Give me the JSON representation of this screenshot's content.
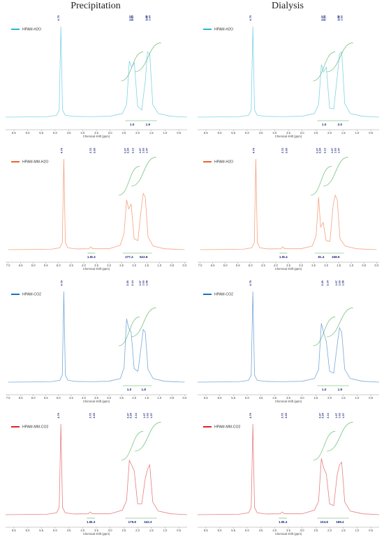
{
  "column_titles": [
    "Precipitation",
    "Dialysis"
  ],
  "chart_data": [
    {
      "type": "line",
      "xlabel": "Chemical shift (ppm)",
      "xlim": [
        6.8,
        0.2
      ],
      "xticks": [
        6.5,
        {
          "value": 6,
          "label": "6.0"
        },
        5.5,
        {
          "value": 5,
          "label": "5.0"
        },
        4.5,
        {
          "value": 4,
          "label": "4.0"
        },
        3.5,
        {
          "value": 3,
          "label": "3.0"
        },
        2.5,
        {
          "value": 2,
          "label": "2.0"
        },
        1.5,
        {
          "value": 1,
          "label": "1.0"
        },
        0.5
      ],
      "ylim": [
        0,
        100
      ],
      "x": [
        6.8,
        5.3,
        4.95,
        4.85,
        4.79,
        4.73,
        4.63,
        4.3,
        3.8,
        3.72,
        3.65,
        3.0,
        2.55,
        2.4,
        2.3,
        2.22,
        2.12,
        2.0,
        1.85,
        1.72,
        1.64,
        1.56,
        1.45,
        1.25,
        0.8,
        0.2
      ],
      "series": [
        {
          "name": "HPAM-H2O",
          "color": "#29b6d8",
          "values": [
            0,
            0.5,
            2,
            8,
            100,
            8,
            2,
            0.8,
            0.6,
            0.6,
            0.6,
            1,
            4,
            14,
            62,
            55,
            60,
            12,
            8,
            40,
            72,
            70,
            14,
            4,
            1,
            0
          ]
        }
      ],
      "peak_labels": [
        4.79,
        2.27,
        2.25,
        2.14,
        1.67,
        1.64,
        1.58
      ],
      "integrals": [
        {
          "from": 2.45,
          "to": 1.95,
          "value": 1,
          "label": "1.0"
        },
        {
          "from": 1.95,
          "to": 1.3,
          "value": 1.9
        }
      ]
    },
    {
      "type": "line",
      "xlabel": "Chemical shift (ppm)",
      "xlim": [
        6.8,
        0.2
      ],
      "xticks": [
        6.5,
        {
          "value": 6,
          "label": "6.0"
        },
        5.5,
        {
          "value": 5,
          "label": "5.0"
        },
        4.5,
        {
          "value": 4,
          "label": "4.0"
        },
        3.5,
        {
          "value": 3,
          "label": "3.0"
        },
        2.5,
        {
          "value": 2,
          "label": "2.0"
        },
        1.5,
        {
          "value": 1,
          "label": "1.0"
        },
        0.5
      ],
      "ylim": [
        0,
        100
      ],
      "x": [
        6.8,
        5.3,
        4.95,
        4.85,
        4.79,
        4.73,
        4.63,
        4.3,
        3.8,
        3.72,
        3.65,
        3.0,
        2.55,
        2.4,
        2.3,
        2.22,
        2.12,
        2.0,
        1.85,
        1.72,
        1.64,
        1.56,
        1.45,
        1.25,
        0.8,
        0.2
      ],
      "series": [
        {
          "name": "HPAM-H2O",
          "color": "#29b6d8",
          "values": [
            0,
            0.5,
            2,
            8,
            100,
            8,
            2,
            0.8,
            0.6,
            0.6,
            0.6,
            1,
            4,
            14,
            58,
            50,
            55,
            10,
            9,
            45,
            70,
            72,
            15,
            4,
            1,
            0
          ]
        }
      ],
      "peak_labels": [
        4.79,
        2.27,
        2.24,
        2.13,
        1.67,
        1.63,
        1.58
      ],
      "integrals": [
        {
          "from": 2.45,
          "to": 1.95,
          "value": 1,
          "label": "1.0"
        },
        {
          "from": 1.95,
          "to": 1.3,
          "value": 2,
          "label": "2.0"
        }
      ]
    },
    {
      "type": "line",
      "xlabel": "Chemical shift (ppm)",
      "xlim": [
        7.1,
        -0.1
      ],
      "xticks": [
        {
          "value": 7,
          "label": "7.0"
        },
        6.5,
        {
          "value": 6,
          "label": "6.0"
        },
        5.5,
        {
          "value": 5,
          "label": "5.0"
        },
        4.5,
        {
          "value": 4,
          "label": "4.0"
        },
        3.5,
        {
          "value": 3,
          "label": "3.0"
        },
        2.5,
        {
          "value": 2,
          "label": "2.0"
        },
        1.5,
        {
          "value": 1,
          "label": "1.0"
        },
        0.5,
        {
          "value": 0,
          "label": "0.0"
        }
      ],
      "ylim": [
        0,
        100
      ],
      "x": [
        7.0,
        5.3,
        4.95,
        4.85,
        4.79,
        4.73,
        4.63,
        4.3,
        3.8,
        3.72,
        3.65,
        3.0,
        2.55,
        2.4,
        2.3,
        2.22,
        2.12,
        2.0,
        1.85,
        1.72,
        1.64,
        1.56,
        1.45,
        1.25,
        0.8,
        0.0
      ],
      "series": [
        {
          "name": "HPAM-MM-H2O",
          "color": "#f0642a",
          "values": [
            0,
            0.5,
            2,
            8,
            100,
            8,
            2,
            0.8,
            1,
            3,
            1,
            1,
            5,
            18,
            55,
            45,
            50,
            12,
            10,
            45,
            62,
            58,
            14,
            4,
            1,
            0
          ]
        }
      ],
      "peak_labels": [
        4.79,
        3.72,
        3.65,
        2.27,
        2.24,
        2.13,
        1.67,
        1.63,
        1.57
      ],
      "integrals": [
        {
          "from": 3.85,
          "to": 3.7,
          "value": 1,
          "label": "1.0"
        },
        {
          "from": 3.7,
          "to": 3.55,
          "value": 0.3
        },
        {
          "from": 2.45,
          "to": 1.95,
          "value": 277.4
        },
        {
          "from": 1.95,
          "to": 1.3,
          "value": 522.8
        }
      ]
    },
    {
      "type": "line",
      "xlabel": "Chemical shift (ppm)",
      "xlim": [
        7.1,
        -0.1
      ],
      "xticks": [
        {
          "value": 7,
          "label": "7.0"
        },
        6.5,
        {
          "value": 6,
          "label": "6.0"
        },
        5.5,
        {
          "value": 5,
          "label": "5.0"
        },
        4.5,
        {
          "value": 4,
          "label": "4.0"
        },
        3.5,
        {
          "value": 3,
          "label": "3.0"
        },
        2.5,
        {
          "value": 2,
          "label": "2.0"
        },
        1.5,
        {
          "value": 1,
          "label": "1.0"
        },
        0.5,
        {
          "value": 0,
          "label": "0.0"
        }
      ],
      "ylim": [
        0,
        100
      ],
      "x": [
        7.0,
        5.3,
        4.95,
        4.85,
        4.79,
        4.73,
        4.63,
        4.3,
        3.8,
        3.72,
        3.65,
        3.0,
        2.55,
        2.4,
        2.3,
        2.22,
        2.12,
        2.0,
        1.85,
        1.72,
        1.64,
        1.56,
        1.45,
        1.25,
        0.8,
        0.0
      ],
      "series": [
        {
          "name": "HPAM-H2O",
          "color": "#f0642a",
          "values": [
            0,
            0.5,
            2,
            8,
            100,
            8,
            2,
            0.8,
            1,
            3,
            1,
            1,
            4,
            15,
            58,
            25,
            30,
            10,
            9,
            50,
            60,
            55,
            12,
            4,
            1,
            0
          ]
        }
      ],
      "peak_labels": [
        4.79,
        3.72,
        3.65,
        2.27,
        2.24,
        2.13,
        1.67,
        1.63,
        1.57
      ],
      "integrals": [
        {
          "from": 3.85,
          "to": 3.7,
          "value": 1,
          "label": "1.0"
        },
        {
          "from": 3.7,
          "to": 3.55,
          "value": 0.4
        },
        {
          "from": 2.45,
          "to": 1.95,
          "value": 81.4
        },
        {
          "from": 1.95,
          "to": 1.3,
          "value": 158.9
        }
      ]
    },
    {
      "type": "line",
      "xlabel": "Chemical shift (ppm)",
      "xlim": [
        7.1,
        -0.1
      ],
      "xticks": [
        {
          "value": 7,
          "label": "7.0"
        },
        6.5,
        {
          "value": 6,
          "label": "6.0"
        },
        5.5,
        {
          "value": 5,
          "label": "5.0"
        },
        4.5,
        {
          "value": 4,
          "label": "4.0"
        },
        3.5,
        {
          "value": 3,
          "label": "3.0"
        },
        2.5,
        {
          "value": 2,
          "label": "2.0"
        },
        1.5,
        {
          "value": 1,
          "label": "1.0"
        },
        0.5,
        {
          "value": 0,
          "label": "0.0"
        }
      ],
      "ylim": [
        0,
        100
      ],
      "x": [
        7.0,
        5.3,
        4.95,
        4.85,
        4.79,
        4.73,
        4.63,
        4.3,
        3.8,
        3.72,
        3.65,
        3.0,
        2.55,
        2.4,
        2.3,
        2.22,
        2.12,
        2.0,
        1.85,
        1.72,
        1.64,
        1.56,
        1.45,
        1.25,
        0.8,
        0.0
      ],
      "series": [
        {
          "name": "HPAM-CO2",
          "color": "#1a6fc4",
          "values": [
            0,
            0.5,
            2,
            8,
            100,
            8,
            2,
            0.8,
            0.6,
            0.6,
            0.6,
            1,
            4,
            16,
            70,
            60,
            55,
            15,
            12,
            40,
            58,
            55,
            14,
            4,
            1,
            0
          ]
        }
      ],
      "peak_labels": [
        4.79,
        2.26,
        2.14,
        1.67,
        1.63,
        1.58
      ],
      "integrals": [
        {
          "from": 2.45,
          "to": 1.95,
          "value": 1,
          "label": "1.0"
        },
        {
          "from": 1.95,
          "to": 1.3,
          "value": 1.8
        }
      ]
    },
    {
      "type": "line",
      "xlabel": "Chemical shift (ppm)",
      "xlim": [
        6.8,
        0.2
      ],
      "xticks": [
        6.5,
        {
          "value": 6,
          "label": "6.0"
        },
        5.5,
        {
          "value": 5,
          "label": "5.0"
        },
        4.5,
        {
          "value": 4,
          "label": "4.0"
        },
        3.5,
        {
          "value": 3,
          "label": "3.0"
        },
        2.5,
        {
          "value": 2,
          "label": "2.0"
        },
        1.5,
        {
          "value": 1,
          "label": "1.0"
        },
        0.5
      ],
      "ylim": [
        0,
        100
      ],
      "x": [
        6.8,
        5.3,
        4.95,
        4.85,
        4.79,
        4.73,
        4.63,
        4.3,
        3.8,
        3.72,
        3.65,
        3.0,
        2.55,
        2.4,
        2.3,
        2.22,
        2.12,
        2.0,
        1.85,
        1.72,
        1.64,
        1.56,
        1.45,
        1.25,
        0.8,
        0.2
      ],
      "series": [
        {
          "name": "HPAM-CO2",
          "color": "#1a6fc4",
          "values": [
            0,
            0.5,
            2,
            8,
            100,
            8,
            2,
            0.8,
            0.6,
            0.6,
            0.6,
            1,
            4,
            14,
            65,
            55,
            45,
            12,
            10,
            42,
            60,
            55,
            14,
            4,
            1,
            0
          ]
        }
      ],
      "peak_labels": [
        4.79,
        2.26,
        2.14,
        1.67,
        1.63,
        1.58
      ],
      "integrals": [
        {
          "from": 2.45,
          "to": 1.95,
          "value": 1,
          "label": "1.0"
        },
        {
          "from": 1.95,
          "to": 1.3,
          "value": 1.9
        }
      ]
    },
    {
      "type": "line",
      "xlabel": "Chemical shift (ppm)",
      "xlim": [
        6.8,
        0.2
      ],
      "xticks": [
        6.5,
        {
          "value": 6,
          "label": "6.0"
        },
        5.5,
        {
          "value": 5,
          "label": "5.0"
        },
        4.5,
        {
          "value": 4,
          "label": "4.0"
        },
        3.5,
        {
          "value": 3,
          "label": "3.0"
        },
        2.5,
        {
          "value": 2,
          "label": "2.0"
        },
        1.5,
        {
          "value": 1,
          "label": "1.0"
        },
        0.5
      ],
      "ylim": [
        0,
        100
      ],
      "x": [
        6.8,
        5.3,
        4.95,
        4.85,
        4.79,
        4.73,
        4.63,
        4.3,
        3.8,
        3.72,
        3.65,
        3.0,
        2.55,
        2.4,
        2.3,
        2.22,
        2.12,
        2.0,
        1.85,
        1.72,
        1.64,
        1.56,
        1.45,
        1.25,
        0.8,
        0.2
      ],
      "series": [
        {
          "name": "HPAM-MM-CO2",
          "color": "#d8262a",
          "values": [
            0,
            0.5,
            2,
            8,
            100,
            8,
            2,
            0.8,
            1,
            3,
            1,
            1,
            5,
            16,
            60,
            55,
            48,
            12,
            12,
            40,
            50,
            55,
            14,
            4,
            1,
            0
          ]
        }
      ],
      "peak_labels": [
        4.79,
        3.72,
        3.65,
        2.27,
        2.24,
        2.13,
        1.67,
        1.63,
        1.57
      ],
      "integrals": [
        {
          "from": 3.85,
          "to": 3.7,
          "value": 1,
          "label": "1.0"
        },
        {
          "from": 3.7,
          "to": 3.55,
          "value": 0.3
        },
        {
          "from": 2.45,
          "to": 1.95,
          "value": 179.8
        },
        {
          "from": 1.95,
          "to": 1.3,
          "value": 342.3
        }
      ]
    },
    {
      "type": "line",
      "xlabel": "Chemical shift (ppm)",
      "xlim": [
        6.8,
        0.2
      ],
      "xticks": [
        6.5,
        {
          "value": 6,
          "label": "6.0"
        },
        5.5,
        {
          "value": 5,
          "label": "5.0"
        },
        4.5,
        {
          "value": 4,
          "label": "4.0"
        },
        3.5,
        {
          "value": 3,
          "label": "3.0"
        },
        2.5,
        {
          "value": 2,
          "label": "2.0"
        },
        1.5,
        {
          "value": 1,
          "label": "1.0"
        },
        0.5
      ],
      "ylim": [
        0,
        100
      ],
      "x": [
        6.8,
        5.3,
        4.95,
        4.85,
        4.79,
        4.73,
        4.63,
        4.3,
        3.8,
        3.72,
        3.65,
        3.0,
        2.55,
        2.4,
        2.3,
        2.22,
        2.12,
        2.0,
        1.85,
        1.72,
        1.64,
        1.56,
        1.45,
        1.25,
        0.8,
        0.2
      ],
      "series": [
        {
          "name": "HPAM-MM-CO2",
          "color": "#d8262a",
          "values": [
            0,
            0.5,
            2,
            8,
            100,
            8,
            2,
            0.8,
            1,
            3,
            1,
            1,
            5,
            15,
            62,
            52,
            45,
            12,
            10,
            45,
            55,
            58,
            14,
            4,
            1,
            0
          ]
        }
      ],
      "peak_labels": [
        4.79,
        3.72,
        3.65,
        2.27,
        2.24,
        2.13,
        1.67,
        1.63,
        1.57
      ],
      "integrals": [
        {
          "from": 3.85,
          "to": 3.7,
          "value": 1,
          "label": "1.0"
        },
        {
          "from": 3.7,
          "to": 3.55,
          "value": 0.4
        },
        {
          "from": 2.45,
          "to": 1.95,
          "value": 104.8
        },
        {
          "from": 1.95,
          "to": 1.3,
          "value": 188.4
        }
      ]
    }
  ]
}
